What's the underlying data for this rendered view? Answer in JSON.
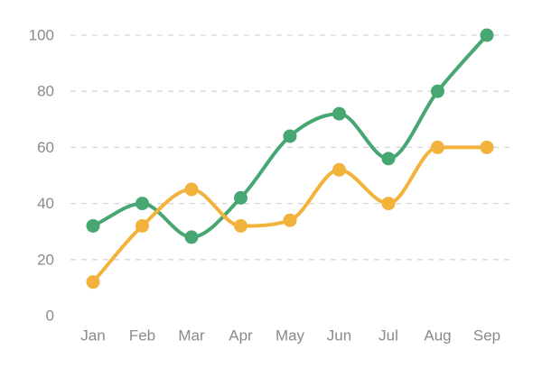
{
  "chart_data": {
    "type": "line",
    "smooth": true,
    "categories": [
      "Jan",
      "Feb",
      "Mar",
      "Apr",
      "May",
      "Jun",
      "Jul",
      "Aug",
      "Sep"
    ],
    "series": [
      {
        "color": "#47a772",
        "values": [
          32,
          40,
          28,
          42,
          64,
          72,
          56,
          80,
          100
        ]
      },
      {
        "color": "#f2b33d",
        "values": [
          12,
          32,
          45,
          32,
          34,
          52,
          40,
          60,
          60
        ]
      }
    ],
    "yticks": [
      0,
      20,
      40,
      60,
      80,
      100
    ],
    "ylim": [
      0,
      100
    ],
    "grid": true,
    "legend": "none"
  }
}
